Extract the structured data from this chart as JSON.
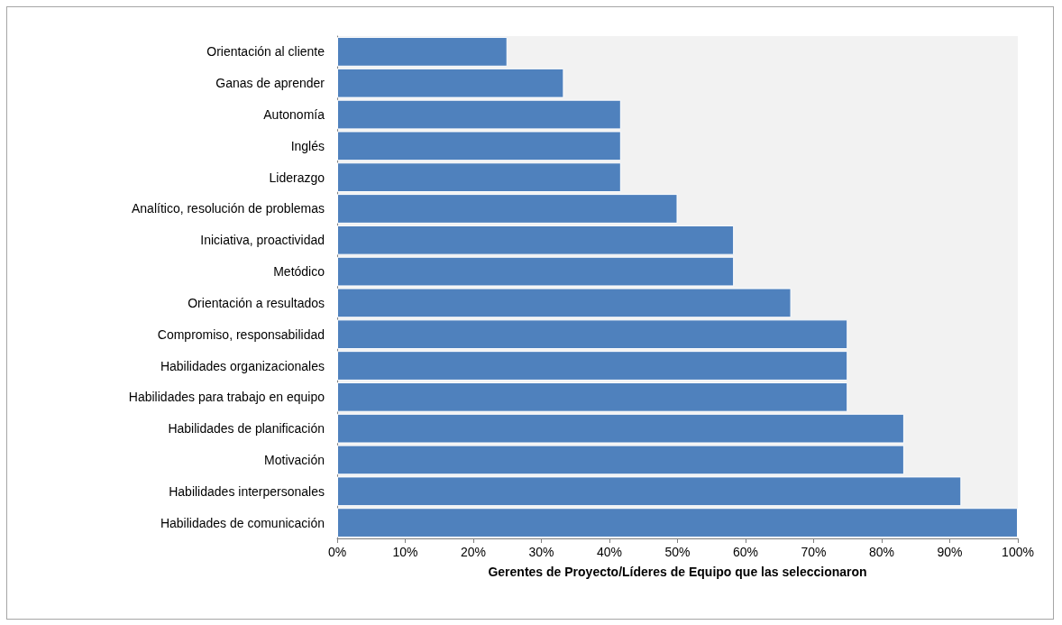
{
  "chart_data": {
    "type": "bar",
    "orientation": "horizontal",
    "xlabel": "Gerentes de Proyecto/Líderes de Equipo que las seleccionaron",
    "categories": [
      "Orientación al cliente",
      "Ganas de aprender",
      "Autonomía",
      "Inglés",
      "Liderazgo",
      "Analítico, resolución de problemas",
      "Iniciativa, proactividad",
      "Metódico",
      "Orientación a resultados",
      "Compromiso, responsabilidad",
      "Habilidades organizacionales",
      "Habilidades para trabajo en equipo",
      "Habilidades de planificación",
      "Motivación",
      "Habilidades interpersonales",
      "Habilidades de comunicación"
    ],
    "values": [
      25,
      33.3,
      41.7,
      41.7,
      41.7,
      50,
      58.3,
      58.3,
      66.7,
      75,
      75,
      75,
      83.3,
      83.3,
      91.7,
      100
    ],
    "color": "#4f81bd",
    "xlim": [
      0,
      100
    ],
    "xticks": [
      {
        "value": 0,
        "label": "0%"
      },
      {
        "value": 10,
        "label": "10%"
      },
      {
        "value": 20,
        "label": "20%"
      },
      {
        "value": 30,
        "label": "30%"
      },
      {
        "value": 40,
        "label": "40%"
      },
      {
        "value": 50,
        "label": "50%"
      },
      {
        "value": 60,
        "label": "60%"
      },
      {
        "value": 70,
        "label": "70%"
      },
      {
        "value": 80,
        "label": "80%"
      },
      {
        "value": 90,
        "label": "90%"
      },
      {
        "value": 100,
        "label": "100%"
      }
    ],
    "grid": false
  }
}
